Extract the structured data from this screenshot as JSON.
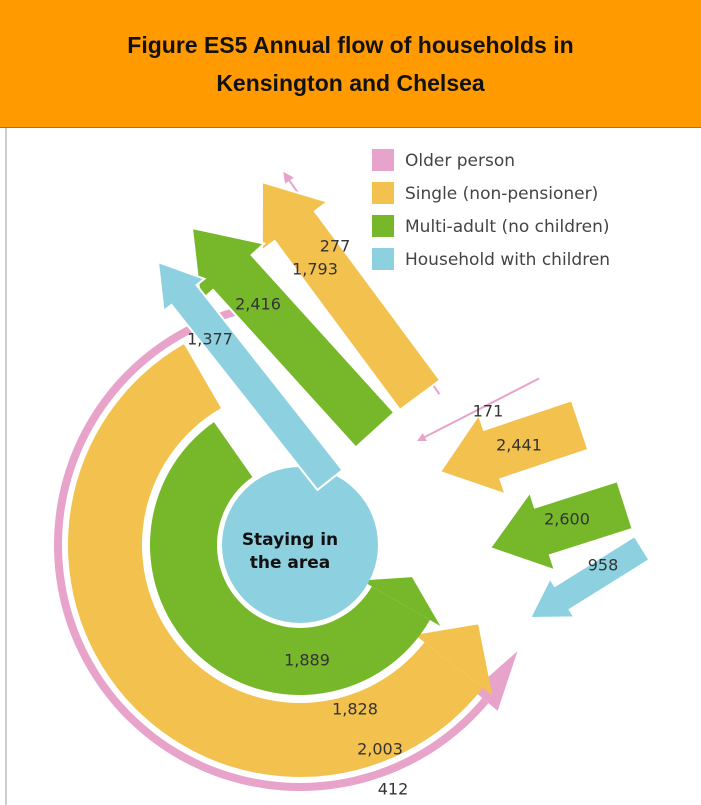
{
  "header": {
    "title": "Figure ES5 Annual flow of households in Kensington and Chelsea"
  },
  "legend": [
    "Older person",
    "Single (non-pensioner)",
    "Multi-adult (no children)",
    "Household with children"
  ],
  "center_label": [
    "Staying in",
    "the area"
  ],
  "moving_out": {
    "older_person": "277",
    "single": "1,793",
    "multi_adult": "2,416",
    "children": "1,377"
  },
  "moving_in": {
    "older_person": "171",
    "single": "2,441",
    "multi_adult": "2,600",
    "children": "958"
  },
  "staying": {
    "children": "1,889",
    "multi_adult": "1,828",
    "single": "2,003",
    "older_person": "412"
  }
}
